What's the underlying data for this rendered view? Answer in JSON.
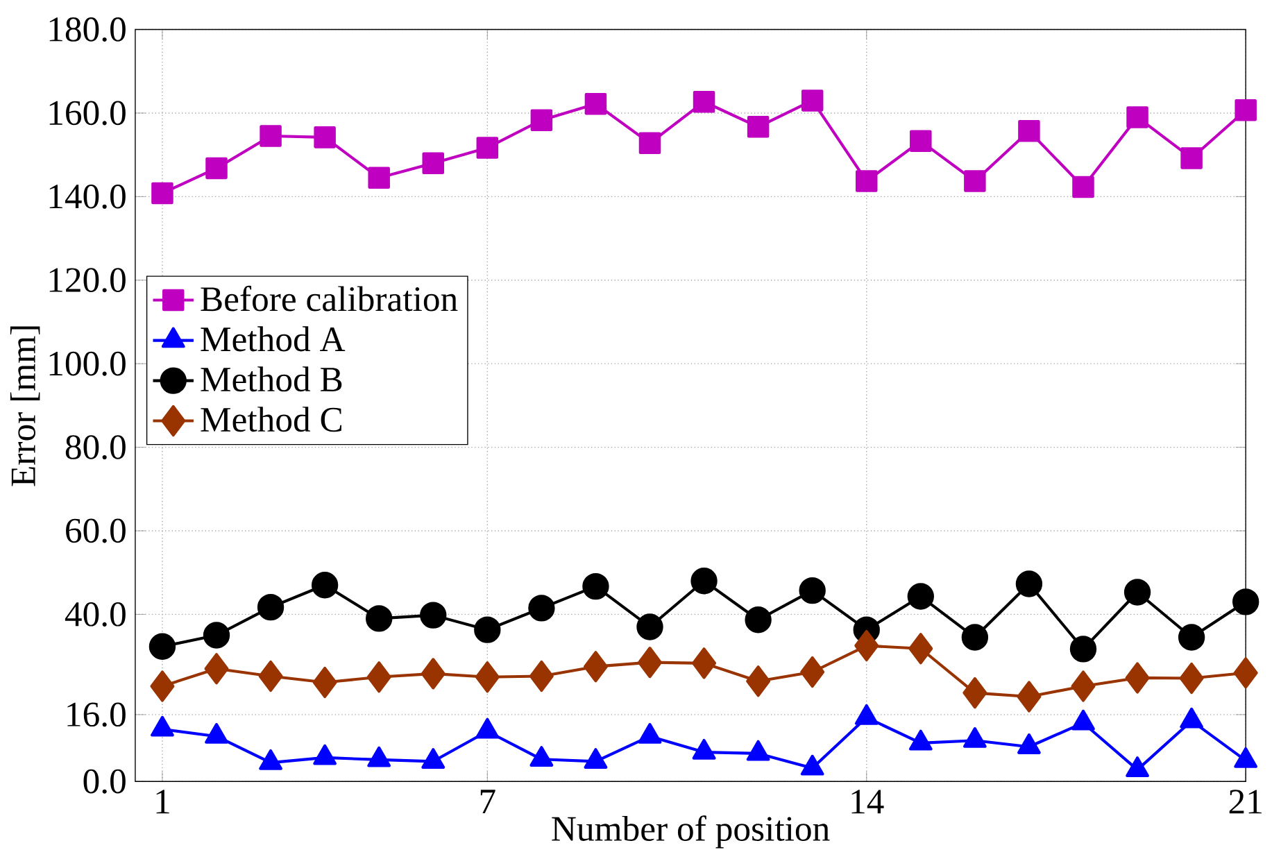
{
  "chart_data": {
    "type": "line",
    "xlabel": "Number of position",
    "ylabel": "Error [mm]",
    "x": [
      1,
      2,
      3,
      4,
      5,
      6,
      7,
      8,
      9,
      10,
      11,
      12,
      13,
      14,
      15,
      16,
      17,
      18,
      19,
      20,
      21
    ],
    "xlim": [
      0.5,
      21
    ],
    "xticks": [
      1,
      7,
      14,
      21
    ],
    "ylim": [
      0,
      180
    ],
    "yticks": [
      {
        "value": 0,
        "label": "0.0"
      },
      {
        "value": 16,
        "label": "16.0"
      },
      {
        "value": 40,
        "label": "40.0"
      },
      {
        "value": 60,
        "label": "60.0"
      },
      {
        "value": 80,
        "label": "80.0"
      },
      {
        "value": 100,
        "label": "100.0"
      },
      {
        "value": 120,
        "label": "120.0"
      },
      {
        "value": 140,
        "label": "140.0"
      },
      {
        "value": 160,
        "label": "160.0"
      },
      {
        "value": 180,
        "label": "180.0"
      }
    ],
    "grid": true,
    "legend": "center left",
    "series": [
      {
        "name": "Before calibration",
        "color": "#c000c0",
        "marker": "square",
        "values": [
          140.8,
          146.8,
          154.5,
          154.2,
          144.5,
          148,
          151.7,
          158.3,
          162.2,
          152.8,
          162.7,
          156.7,
          163,
          143.7,
          153.3,
          143.7,
          155.7,
          142.3,
          159,
          149.2,
          160.7
        ]
      },
      {
        "name": "Method A",
        "color": "#0000ff",
        "marker": "triangle",
        "values": [
          12.5,
          10.8,
          4.5,
          5.7,
          5.2,
          4.8,
          12,
          5.3,
          4.8,
          10.8,
          7,
          6.7,
          3.2,
          15.3,
          9.2,
          9.8,
          8.3,
          14,
          2.8,
          14.5,
          5
        ]
      },
      {
        "name": "Method B",
        "color": "#000000",
        "marker": "circle",
        "values": [
          32.3,
          35,
          41.7,
          47,
          39,
          39.8,
          36.3,
          41.5,
          46.7,
          37,
          48,
          38.7,
          45.7,
          36.3,
          44.3,
          34.5,
          47.3,
          31.7,
          45.3,
          34.5,
          43
        ]
      },
      {
        "name": "Method C",
        "color": "#993300",
        "marker": "diamond",
        "values": [
          22.8,
          27,
          25.2,
          23.7,
          25,
          25.8,
          25,
          25.2,
          27.5,
          28.5,
          28.3,
          24,
          26.2,
          32.5,
          31.8,
          21.2,
          20.3,
          22.8,
          24.8,
          24.7,
          26
        ]
      }
    ]
  }
}
